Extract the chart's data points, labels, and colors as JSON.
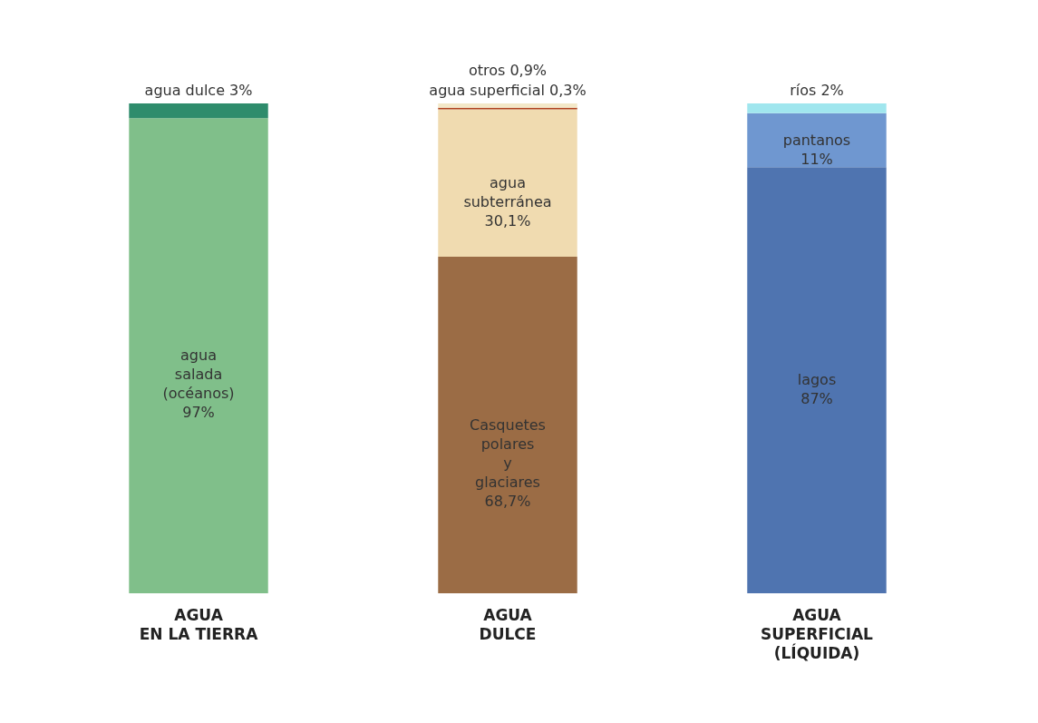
{
  "chart_data": {
    "type": "bar",
    "stacked": true,
    "categories": [
      "AGUA\nEN LA TIERRA",
      "AGUA\nDULCE",
      "AGUA\nSUPERFICIAL\n(LÍQUIDA)"
    ],
    "series": [
      {
        "name": "agua salada (océanos)",
        "color": "#80bf8a",
        "values": [
          97,
          null,
          null
        ],
        "value_labels": [
          "97%",
          null,
          null
        ]
      },
      {
        "name": "agua dulce",
        "color": "#2e8c6c",
        "values": [
          3,
          null,
          null
        ],
        "value_labels": [
          "3%",
          null,
          null
        ]
      },
      {
        "name": "Casquetes polares y glaciares",
        "color": "#9b6c45",
        "values": [
          null,
          68.7,
          null
        ],
        "value_labels": [
          null,
          "68,7%",
          null
        ]
      },
      {
        "name": "agua subterránea",
        "color": "#f0dbb0",
        "values": [
          null,
          30.1,
          null
        ],
        "value_labels": [
          null,
          "30,1%",
          null
        ]
      },
      {
        "name": "agua superficial",
        "color": "#b0441f",
        "values": [
          null,
          0.3,
          null
        ],
        "value_labels": [
          null,
          "0,3%",
          null
        ]
      },
      {
        "name": "otros",
        "color": "#f3e8c8",
        "values": [
          null,
          0.9,
          null
        ],
        "value_labels": [
          null,
          "0,9%",
          null
        ]
      },
      {
        "name": "lagos",
        "color": "#4f74b0",
        "values": [
          null,
          null,
          87
        ],
        "value_labels": [
          null,
          null,
          "87%"
        ]
      },
      {
        "name": "pantanos",
        "color": "#6f97d0",
        "values": [
          null,
          null,
          11
        ],
        "value_labels": [
          null,
          null,
          "11%"
        ]
      },
      {
        "name": "ríos",
        "color": "#a0e6ee",
        "values": [
          null,
          null,
          2
        ],
        "value_labels": [
          null,
          null,
          "2%"
        ]
      }
    ]
  }
}
